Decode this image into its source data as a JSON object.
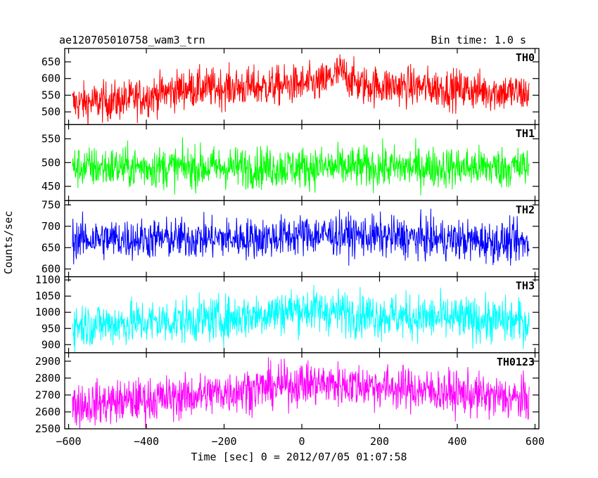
{
  "header": {
    "title": "ae120705010758_wam3_trn",
    "bin_time": "Bin time: 1.0 s"
  },
  "chart_data": {
    "type": "line",
    "xlabel": "Time [sec] 0 = 2012/07/05 01:07:58",
    "ylabel": "Counts/sec",
    "xlim": [
      -610,
      610
    ],
    "x_ticks": [
      -600,
      -400,
      -200,
      0,
      200,
      400,
      600
    ],
    "x_tick_labels": [
      "−600",
      "−400",
      "−200",
      "0",
      "200",
      "400",
      "600"
    ],
    "x_data_range": [
      -590,
      585
    ],
    "bin_seconds": 1.0,
    "panels": [
      {
        "name": "TH0",
        "color": "#ff0000",
        "ylim": [
          462,
          690
        ],
        "y_ticks": [
          500,
          550,
          600,
          650
        ],
        "trend": [
          [
            -590,
            525
          ],
          [
            -450,
            535
          ],
          [
            -300,
            570
          ],
          [
            -100,
            575
          ],
          [
            50,
            585
          ],
          [
            100,
            620
          ],
          [
            150,
            580
          ],
          [
            300,
            575
          ],
          [
            585,
            555
          ]
        ],
        "noise": 30
      },
      {
        "name": "TH1",
        "color": "#00ff00",
        "ylim": [
          420,
          580
        ],
        "y_ticks": [
          450,
          500,
          550
        ],
        "trend": [
          [
            -590,
            490
          ],
          [
            585,
            490
          ]
        ],
        "noise": 22
      },
      {
        "name": "TH2",
        "color": "#0000ff",
        "ylim": [
          582,
          760
        ],
        "y_ticks": [
          600,
          650,
          700,
          750
        ],
        "trend": [
          [
            -590,
            670
          ],
          [
            -100,
            672
          ],
          [
            0,
            680
          ],
          [
            100,
            680
          ],
          [
            300,
            672
          ],
          [
            585,
            660
          ]
        ],
        "noise": 24
      },
      {
        "name": "TH3",
        "color": "#00ffff",
        "ylim": [
          875,
          1110
        ],
        "y_ticks": [
          900,
          950,
          1000,
          1050,
          1100
        ],
        "trend": [
          [
            -590,
            960
          ],
          [
            -200,
            980
          ],
          [
            0,
            1010
          ],
          [
            200,
            990
          ],
          [
            585,
            970
          ]
        ],
        "noise": 35
      },
      {
        "name": "TH0123",
        "color": "#ff00ff",
        "ylim": [
          2500,
          2950
        ],
        "y_ticks": [
          2500,
          2600,
          2700,
          2800,
          2900
        ],
        "trend": [
          [
            -590,
            2640
          ],
          [
            -300,
            2690
          ],
          [
            0,
            2770
          ],
          [
            150,
            2760
          ],
          [
            350,
            2720
          ],
          [
            585,
            2670
          ]
        ],
        "noise": 65
      }
    ]
  }
}
